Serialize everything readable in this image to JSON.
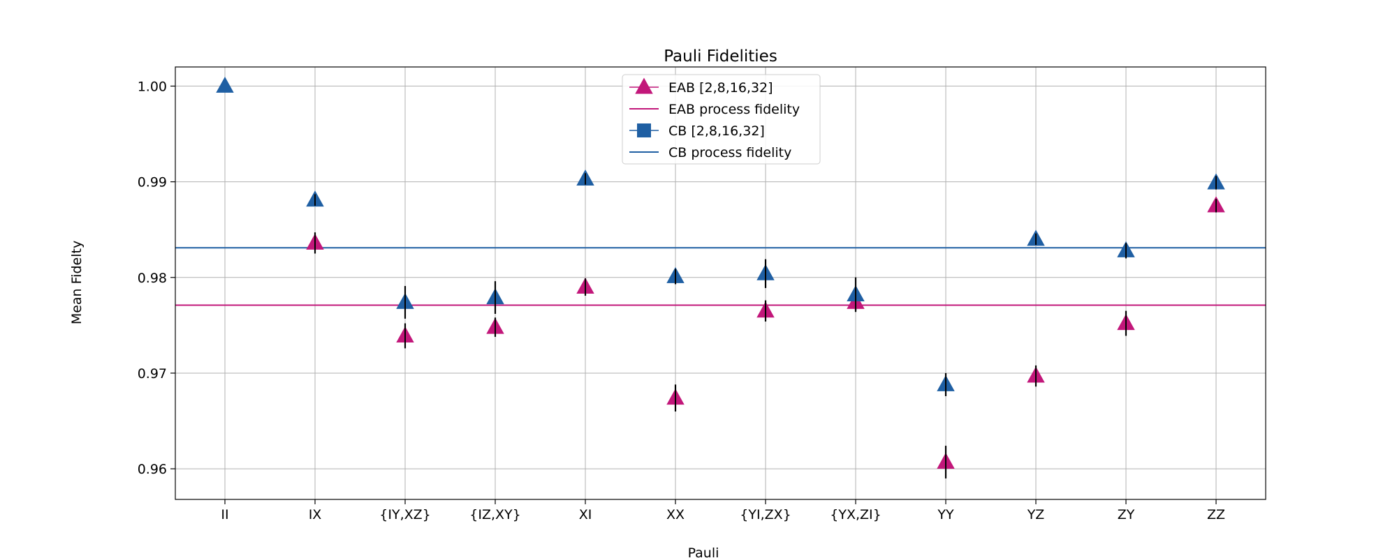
{
  "chart_data": {
    "type": "scatter",
    "title": "Pauli Fidelities",
    "xlabel": "Pauli",
    "ylabel": "Mean Fidelty",
    "categories": [
      "II",
      "IX",
      "{IY,XZ}",
      "{IZ,XY}",
      "XI",
      "XX",
      "{YI,ZX}",
      "{YX,ZI}",
      "YY",
      "YZ",
      "ZY",
      "ZZ"
    ],
    "ylim": [
      0.9568,
      1.002
    ],
    "yticks": [
      0.96,
      0.97,
      0.98,
      0.99,
      1.0
    ],
    "ytick_labels": [
      "0.96",
      "0.97",
      "0.98",
      "0.99",
      "1.00"
    ],
    "grid": true,
    "legend_position": "top-center",
    "series": [
      {
        "name": "EAB [2,8,16,32]",
        "marker": "triangle",
        "color": "#c2177a",
        "values": [
          null,
          0.9836,
          0.9739,
          0.9748,
          0.979,
          0.9674,
          0.9765,
          0.9774,
          0.9607,
          0.9697,
          0.9752,
          0.9875
        ],
        "errors": [
          null,
          0.0011,
          0.0013,
          0.001,
          0.0009,
          0.0014,
          0.0011,
          0.0008,
          0.0017,
          0.0011,
          0.0013,
          0.0007
        ]
      },
      {
        "name": "CB [2,8,16,32]",
        "legend_marker": "square",
        "marker": "triangle",
        "color": "#1f5fa3",
        "values": [
          1.0,
          0.9881,
          0.9774,
          0.9779,
          0.9903,
          0.9801,
          0.9804,
          0.9782,
          0.9688,
          0.984,
          0.9828,
          0.9899
        ],
        "errors": [
          0,
          0.0006,
          0.0017,
          0.0017,
          0.0006,
          0.0008,
          0.0015,
          0.0018,
          0.0012,
          0.0006,
          0.0008,
          0.0007
        ]
      }
    ],
    "reference_lines": [
      {
        "name": "EAB process fidelity",
        "value": 0.9771,
        "color": "#c2177a"
      },
      {
        "name": "CB process fidelity",
        "value": 0.9831,
        "color": "#1f5fa3"
      }
    ]
  }
}
